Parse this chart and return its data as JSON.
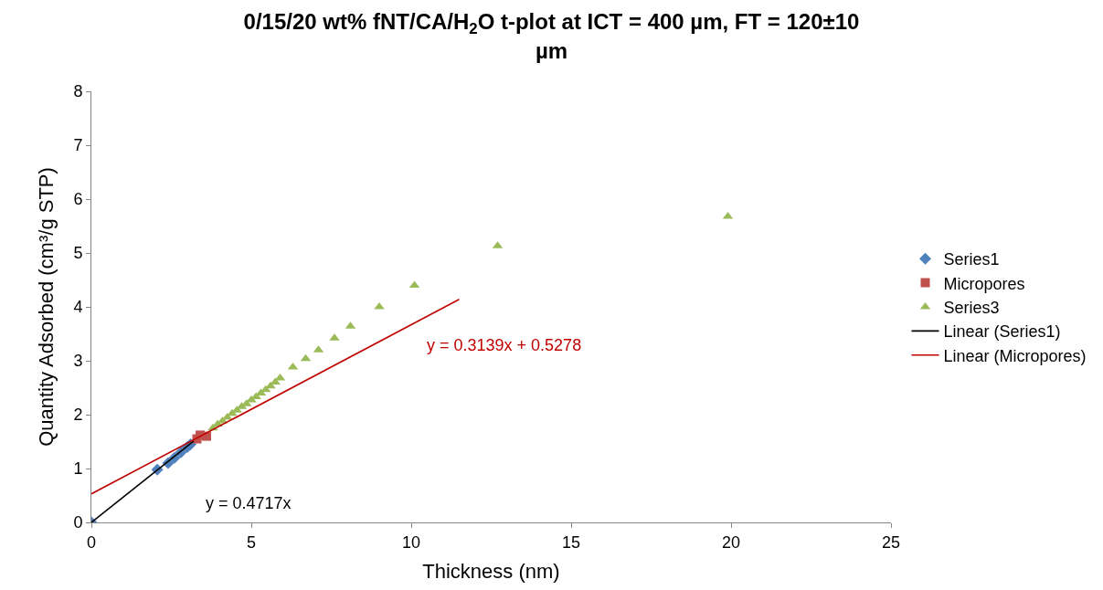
{
  "chart_data": {
    "type": "scatter",
    "title": "0/15/20 wt% fNT/CA/H$_{2}$O t-plot at ICT = 400 µm, FT = 120±10 µm",
    "xlabel": "Thickness (nm)",
    "ylabel": "Quantity Adsorbed (cm³/g STP)",
    "xlim": [
      0,
      25
    ],
    "xticks": [
      0,
      5,
      10,
      15,
      20,
      25
    ],
    "ylim": [
      0,
      8
    ],
    "yticks": [
      0,
      1,
      2,
      3,
      4,
      5,
      6,
      7,
      8
    ],
    "legend": "right",
    "series": [
      {
        "name": "Series1",
        "marker": "diamond",
        "color": "#4f81bd",
        "x": [
          0,
          2.06,
          2.4,
          2.6,
          2.8,
          3.0,
          3.1
        ],
        "values": [
          0,
          0.98,
          1.1,
          1.2,
          1.3,
          1.4,
          1.45
        ]
      },
      {
        "name": "Micropores",
        "marker": "square",
        "color": "#c0504d",
        "x": [
          3.3,
          3.4,
          3.6
        ],
        "values": [
          1.55,
          1.62,
          1.6
        ]
      },
      {
        "name": "Series3",
        "marker": "triangle",
        "color": "#9bbb59",
        "x": [
          3.8,
          3.95,
          4.1,
          4.25,
          4.4,
          4.55,
          4.7,
          4.85,
          5.0,
          5.15,
          5.3,
          5.45,
          5.6,
          5.75,
          5.9,
          6.3,
          6.7,
          7.1,
          7.6,
          8.1,
          9.0,
          10.1,
          12.7,
          19.9
        ],
        "values": [
          1.75,
          1.82,
          1.88,
          1.95,
          2.02,
          2.08,
          2.15,
          2.2,
          2.27,
          2.33,
          2.4,
          2.46,
          2.53,
          2.6,
          2.68,
          2.88,
          3.04,
          3.2,
          3.42,
          3.64,
          4.0,
          4.4,
          5.13,
          5.68
        ]
      },
      {
        "name": "Linear (Series1)",
        "type": "line",
        "marker": "none",
        "color": "#000000",
        "x": [
          0,
          3.2
        ],
        "values": [
          0,
          1.51
        ]
      },
      {
        "name": "Linear (Micropores)",
        "type": "line",
        "marker": "none",
        "color": "#c00000",
        "x": [
          0,
          11.5
        ],
        "values": [
          0.53,
          4.14
        ]
      }
    ],
    "annotations": [
      "y = 0.4717x",
      "y = 0.3139x + 0.5278"
    ]
  }
}
